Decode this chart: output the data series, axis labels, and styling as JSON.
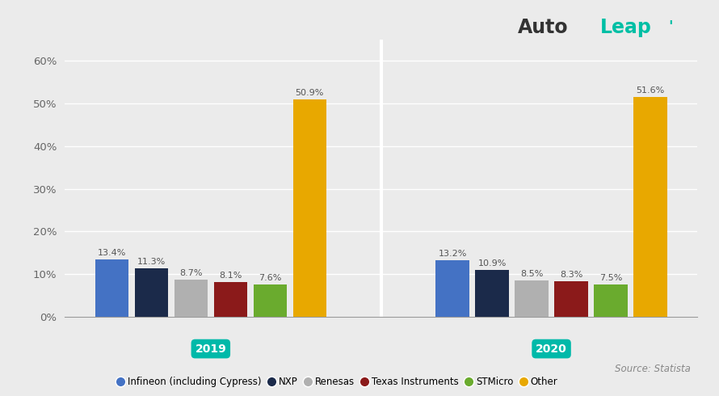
{
  "groups": [
    "2019",
    "2020"
  ],
  "categories": [
    "Infineon (including Cypress)",
    "NXP",
    "Renesas",
    "Texas Instruments",
    "STMicro",
    "Other"
  ],
  "values_2019": [
    13.4,
    11.3,
    8.7,
    8.1,
    7.6,
    50.9
  ],
  "values_2020": [
    13.2,
    10.9,
    8.5,
    8.3,
    7.5,
    51.6
  ],
  "bar_colors": [
    "#4472C4",
    "#1B2A4A",
    "#B0B0B0",
    "#8B1A1A",
    "#6AAB2E",
    "#E8A800"
  ],
  "background_color": "#EBEBEB",
  "plot_bg_color": "#EBEBEB",
  "separator_color": "#FFFFFF",
  "year_label_color": "#00B9A9",
  "yticks": [
    0,
    10,
    20,
    30,
    40,
    50,
    60
  ],
  "ylim": [
    0,
    65
  ],
  "source_text": "Source: Statista",
  "grid_color": "#FFFFFF",
  "value_label_color": "#555555",
  "autoleap_auto_color": "#333333",
  "autoleap_leap_color": "#00BFA5"
}
